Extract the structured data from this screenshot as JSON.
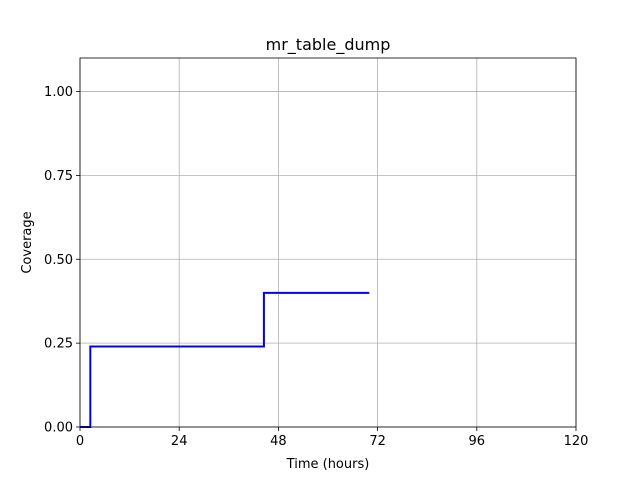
{
  "chart_data": {
    "type": "line",
    "title": "mr_table_dump",
    "xlabel": "Time (hours)",
    "ylabel": "Coverage",
    "xlim": [
      0,
      120
    ],
    "ylim": [
      0,
      1.1
    ],
    "xticks": [
      0,
      24,
      48,
      72,
      96,
      120
    ],
    "yticks": [
      0.0,
      0.25,
      0.5,
      0.75,
      1.0
    ],
    "xtick_labels": [
      "0",
      "24",
      "48",
      "72",
      "96",
      "120"
    ],
    "ytick_labels": [
      "0.00",
      "0.25",
      "0.50",
      "0.75",
      "1.00"
    ],
    "grid": true,
    "series": [
      {
        "color": "#0000ff",
        "step": "post",
        "x": [
          0,
          2.5,
          44.5,
          70
        ],
        "y": [
          0,
          0.24,
          0.4,
          0.4
        ]
      }
    ]
  }
}
